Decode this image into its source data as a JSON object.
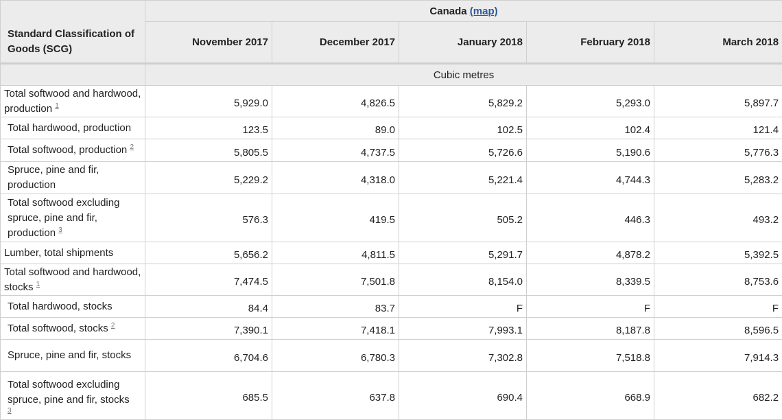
{
  "header": {
    "geo": "Canada",
    "map_link": "(map)",
    "stub_title": "Standard Classification of Goods (SCG)",
    "units": "Cubic metres",
    "columns": [
      "November 2017",
      "December 2017",
      "January 2018",
      "February 2018",
      "March 2018"
    ]
  },
  "rows": [
    {
      "label": "Total softwood and hardwood, production",
      "footnote": "1",
      "values": [
        "5,929.0",
        "4,826.5",
        "5,829.2",
        "5,293.0",
        "5,897.7"
      ]
    },
    {
      "label": "Total hardwood, production",
      "footnote": "",
      "values": [
        "123.5",
        "89.0",
        "102.5",
        "102.4",
        "121.4"
      ]
    },
    {
      "label": "Total softwood, production",
      "footnote": "2",
      "values": [
        "5,805.5",
        "4,737.5",
        "5,726.6",
        "5,190.6",
        "5,776.3"
      ]
    },
    {
      "label": "Spruce, pine and fir, production",
      "footnote": "",
      "values": [
        "5,229.2",
        "4,318.0",
        "5,221.4",
        "4,744.3",
        "5,283.2"
      ]
    },
    {
      "label": "Total softwood excluding spruce, pine and fir, production",
      "footnote": "3",
      "values": [
        "576.3",
        "419.5",
        "505.2",
        "446.3",
        "493.2"
      ]
    },
    {
      "label": "Lumber, total shipments",
      "footnote": "",
      "values": [
        "5,656.2",
        "4,811.5",
        "5,291.7",
        "4,878.2",
        "5,392.5"
      ]
    },
    {
      "label": "Total softwood and hardwood, stocks",
      "footnote": "1",
      "values": [
        "7,474.5",
        "7,501.8",
        "8,154.0",
        "8,339.5",
        "8,753.6"
      ]
    },
    {
      "label": "Total hardwood, stocks",
      "footnote": "",
      "values": [
        "84.4",
        "83.7",
        "F",
        "F",
        "F"
      ]
    },
    {
      "label": "Total softwood, stocks",
      "footnote": "2",
      "values": [
        "7,390.1",
        "7,418.1",
        "7,993.1",
        "8,187.8",
        "8,596.5"
      ]
    },
    {
      "label": "Spruce, pine and fir, stocks",
      "footnote": "",
      "values": [
        "6,704.6",
        "6,780.3",
        "7,302.8",
        "7,518.8",
        "7,914.3"
      ]
    },
    {
      "label": "Total softwood excluding spruce, pine and fir, stocks",
      "footnote": "3",
      "values": [
        "685.5",
        "637.8",
        "690.4",
        "668.9",
        "682.2"
      ]
    }
  ]
}
